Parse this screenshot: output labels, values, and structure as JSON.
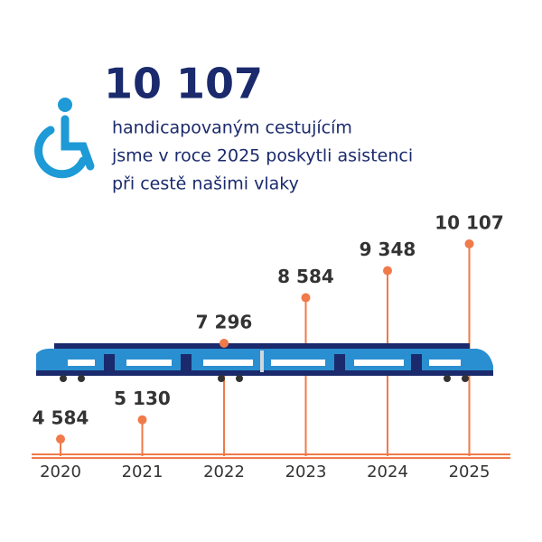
{
  "chart_data": {
    "type": "lollipop",
    "headline": "10 107",
    "subtitle_lines": [
      "handicapovaným cestujícím",
      "jsme v roce 2025 poskytli asistenci",
      "při cestě našimi vlaky"
    ],
    "categories": [
      "2020",
      "2021",
      "2022",
      "2023",
      "2024",
      "2025"
    ],
    "values": [
      4584,
      5130,
      7296,
      8584,
      9348,
      10107
    ],
    "value_labels": [
      "4 584",
      "5 130",
      "7 296",
      "8 584",
      "9 348",
      "10 107"
    ],
    "color": "#f07a4a",
    "ylim": [
      4100,
      11000
    ]
  }
}
